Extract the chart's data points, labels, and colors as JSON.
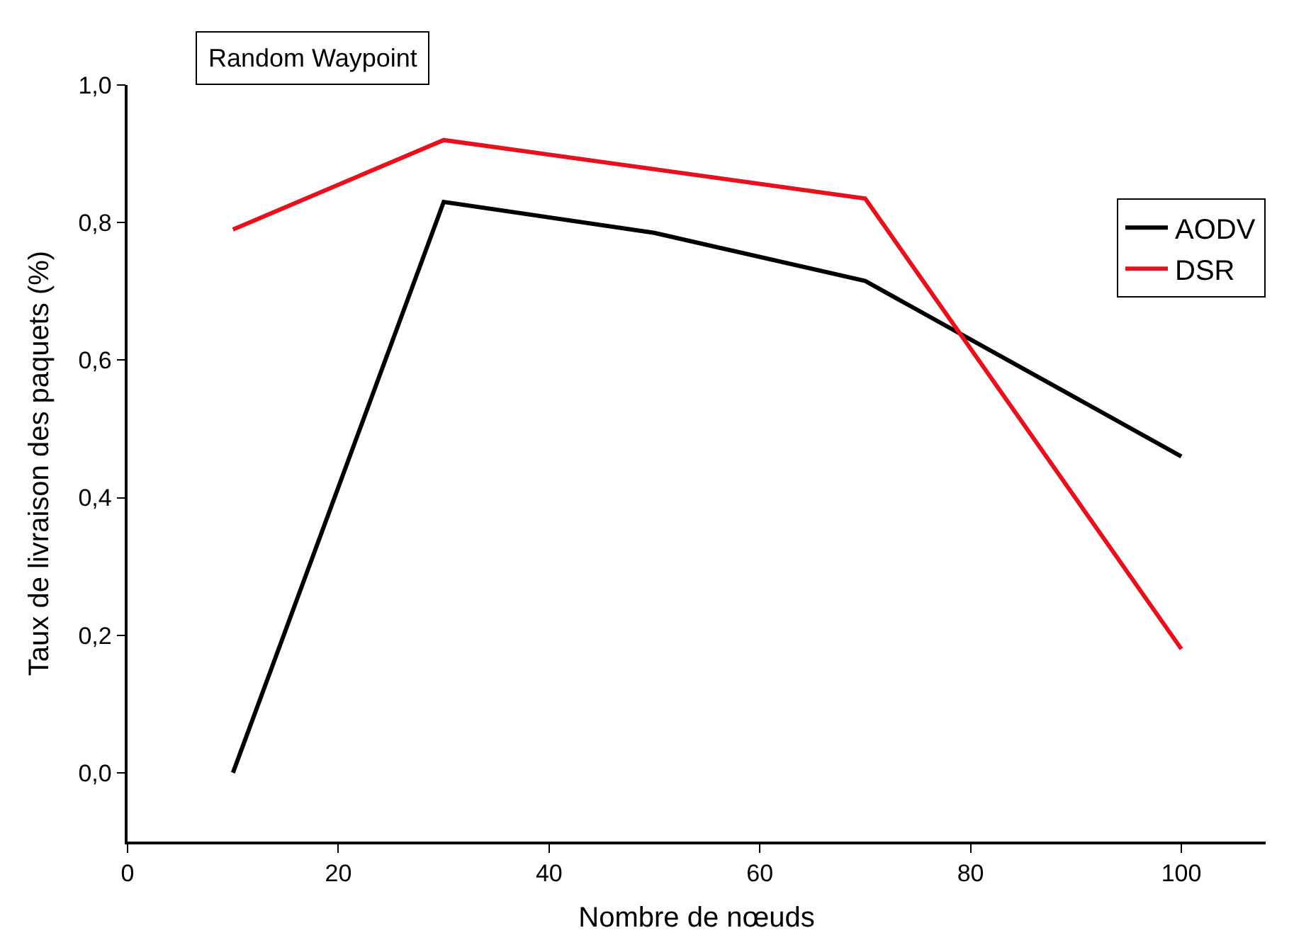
{
  "chart_data": {
    "type": "line",
    "xlabel": "Nombre de nœuds",
    "ylabel": "Taux de livraison des paquets (%)",
    "annotations": [
      "Random Waypoint"
    ],
    "x": [
      10,
      30,
      50,
      70,
      100
    ],
    "series": [
      {
        "name": "AODV",
        "color": "#000000",
        "values": [
          0.0,
          0.83,
          0.785,
          0.715,
          0.46
        ]
      },
      {
        "name": "DSR",
        "color": "#e8101c",
        "x": [
          10,
          30,
          70,
          100
        ],
        "values": [
          0.79,
          0.92,
          0.835,
          0.18
        ]
      }
    ],
    "xlim": [
      0,
      108
    ],
    "xticks": [
      0,
      20,
      40,
      60,
      80,
      100
    ],
    "ylim": [
      -0.1,
      1.0
    ],
    "yticks": [
      {
        "value": 0,
        "label": "0,0"
      },
      {
        "value": 0.2,
        "label": "0,2"
      },
      {
        "value": 0.4,
        "label": "0,4"
      },
      {
        "value": 0.6,
        "label": "0,6"
      },
      {
        "value": 0.8,
        "label": "0,8"
      },
      {
        "value": 1.0,
        "label": "1,0"
      }
    ],
    "legend": "top right",
    "marker": "none",
    "line_style": "solid"
  }
}
